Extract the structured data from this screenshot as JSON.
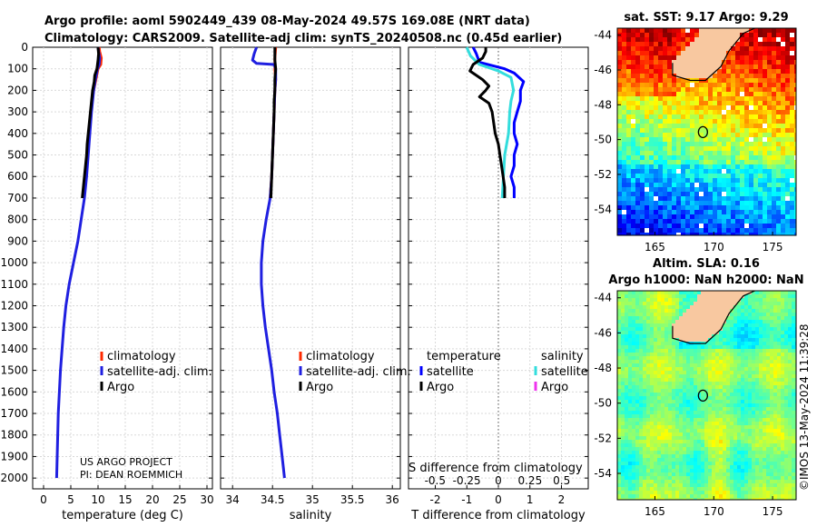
{
  "header": {
    "line1": "Argo profile: aoml 5902449_439 08-May-2024 49.57S 169.08E (NRT data)",
    "line2": "Climatology: CARS2009. Satellite-adj clim: synTS_20240508.nc (0.45d earlier)"
  },
  "colors": {
    "climatology": "#ff2a00",
    "satellite": "#1f1fe0",
    "argo": "#000000",
    "sat_temp": "#0000ff",
    "sat_sal": "#33dddd",
    "argo_sal": "#ee33ee"
  },
  "depth_ticks": [
    "0",
    "100",
    "200",
    "300",
    "400",
    "500",
    "600",
    "700",
    "800",
    "900",
    "1000",
    "1100",
    "1200",
    "1300",
    "1400",
    "1500",
    "1600",
    "1700",
    "1800",
    "1900",
    "2000"
  ],
  "chart_data": [
    {
      "type": "line",
      "name": "temperature",
      "xlabel": "temperature (deg C)",
      "ylabel": "depth",
      "xlim": [
        -2,
        31
      ],
      "ylim": [
        2050,
        0
      ],
      "xticks": [
        "0",
        "5",
        "10",
        "15",
        "20",
        "25",
        "30"
      ],
      "legend": [
        "climatology",
        "satellite-adj. clim.",
        "Argo"
      ],
      "credit1": "US ARGO PROJECT",
      "credit2": "PI: DEAN ROEMMICH",
      "series": [
        {
          "name": "climatology",
          "points": [
            [
              10.2,
              0
            ],
            [
              10.3,
              20
            ],
            [
              10.6,
              50
            ],
            [
              10.5,
              80
            ],
            [
              10.0,
              100
            ],
            [
              9.6,
              150
            ],
            [
              9.2,
              200
            ],
            [
              8.9,
              250
            ],
            [
              8.7,
              300
            ],
            [
              8.4,
              400
            ],
            [
              8.1,
              500
            ],
            [
              7.8,
              600
            ],
            [
              7.4,
              700
            ]
          ]
        },
        {
          "name": "satellite-adj. clim.",
          "points": [
            [
              10.0,
              0
            ],
            [
              10.1,
              20
            ],
            [
              10.3,
              50
            ],
            [
              10.2,
              80
            ],
            [
              9.9,
              100
            ],
            [
              9.5,
              150
            ],
            [
              9.2,
              200
            ],
            [
              9.0,
              250
            ],
            [
              8.8,
              300
            ],
            [
              8.5,
              400
            ],
            [
              8.2,
              500
            ],
            [
              7.9,
              600
            ],
            [
              7.5,
              700
            ],
            [
              6.9,
              800
            ],
            [
              6.3,
              900
            ],
            [
              5.5,
              1000
            ],
            [
              4.7,
              1100
            ],
            [
              4.1,
              1200
            ],
            [
              3.7,
              1300
            ],
            [
              3.4,
              1400
            ],
            [
              3.1,
              1500
            ],
            [
              2.9,
              1600
            ],
            [
              2.7,
              1700
            ],
            [
              2.6,
              1800
            ],
            [
              2.5,
              1900
            ],
            [
              2.4,
              2000
            ]
          ]
        },
        {
          "name": "Argo",
          "points": [
            [
              10.0,
              0
            ],
            [
              10.1,
              30
            ],
            [
              10.0,
              60
            ],
            [
              9.8,
              100
            ],
            [
              9.4,
              130
            ],
            [
              9.3,
              160
            ],
            [
              9.0,
              200
            ],
            [
              8.8,
              250
            ],
            [
              8.6,
              300
            ],
            [
              8.4,
              350
            ],
            [
              8.2,
              400
            ],
            [
              8.0,
              450
            ],
            [
              7.9,
              500
            ],
            [
              7.7,
              550
            ],
            [
              7.5,
              600
            ],
            [
              7.3,
              650
            ],
            [
              7.1,
              700
            ]
          ]
        }
      ]
    },
    {
      "type": "line",
      "name": "salinity",
      "xlabel": "salinity",
      "ylabel": "depth",
      "xlim": [
        33.85,
        36.1
      ],
      "ylim": [
        2050,
        0
      ],
      "xticks": [
        "34",
        "34.5",
        "35",
        "35.5",
        "36"
      ],
      "legend": [
        "climatology",
        "satellite-adj. clim.",
        "Argo"
      ],
      "series": [
        {
          "name": "climatology",
          "points": [
            [
              34.54,
              0
            ],
            [
              34.53,
              50
            ],
            [
              34.53,
              100
            ],
            [
              34.54,
              150
            ],
            [
              34.53,
              200
            ],
            [
              34.52,
              300
            ],
            [
              34.51,
              400
            ],
            [
              34.5,
              500
            ],
            [
              34.49,
              600
            ],
            [
              34.47,
              700
            ]
          ]
        },
        {
          "name": "satellite-adj. clim.",
          "points": [
            [
              34.3,
              0
            ],
            [
              34.27,
              30
            ],
            [
              34.25,
              60
            ],
            [
              34.3,
              75
            ],
            [
              34.52,
              80
            ],
            [
              34.54,
              100
            ],
            [
              34.54,
              150
            ],
            [
              34.53,
              200
            ],
            [
              34.52,
              300
            ],
            [
              34.51,
              400
            ],
            [
              34.5,
              500
            ],
            [
              34.49,
              600
            ],
            [
              34.47,
              700
            ],
            [
              34.42,
              800
            ],
            [
              34.38,
              900
            ],
            [
              34.36,
              1000
            ],
            [
              34.36,
              1100
            ],
            [
              34.38,
              1200
            ],
            [
              34.41,
              1300
            ],
            [
              34.45,
              1400
            ],
            [
              34.49,
              1500
            ],
            [
              34.52,
              1600
            ],
            [
              34.56,
              1700
            ],
            [
              34.59,
              1800
            ],
            [
              34.62,
              1900
            ],
            [
              34.65,
              2000
            ]
          ]
        },
        {
          "name": "Argo",
          "points": [
            [
              34.53,
              0
            ],
            [
              34.53,
              60
            ],
            [
              34.54,
              100
            ],
            [
              34.53,
              150
            ],
            [
              34.53,
              200
            ],
            [
              34.52,
              250
            ],
            [
              34.52,
              300
            ],
            [
              34.51,
              400
            ],
            [
              34.5,
              500
            ],
            [
              34.49,
              600
            ],
            [
              34.48,
              700
            ]
          ]
        }
      ]
    },
    {
      "type": "line",
      "name": "difference",
      "xlabel": "T difference from climatology",
      "xlabel2": "S difference from climatology",
      "xlim": [
        -2.85,
        2.85
      ],
      "ylim": [
        2050,
        0
      ],
      "xticks": [
        "-2",
        "-1",
        "0",
        "1",
        "2"
      ],
      "xticks2": [
        "-0.5",
        "-0.25",
        "0",
        "0.25",
        "0.5"
      ],
      "legend_temp_title": "temperature",
      "legend_sal_title": "salinity",
      "legend_sat": "satellite",
      "legend_argo": "Argo",
      "series": [
        {
          "name": "satellite temperature",
          "points": [
            [
              -0.8,
              0
            ],
            [
              -0.7,
              30
            ],
            [
              -0.6,
              70
            ],
            [
              0.2,
              100
            ],
            [
              0.5,
              120
            ],
            [
              0.8,
              160
            ],
            [
              0.7,
              200
            ],
            [
              0.7,
              250
            ],
            [
              0.6,
              300
            ],
            [
              0.5,
              350
            ],
            [
              0.5,
              400
            ],
            [
              0.6,
              450
            ],
            [
              0.5,
              500
            ],
            [
              0.5,
              550
            ],
            [
              0.4,
              600
            ],
            [
              0.5,
              650
            ],
            [
              0.5,
              700
            ]
          ]
        },
        {
          "name": "Argo temperature",
          "points": [
            [
              -0.4,
              0
            ],
            [
              -0.4,
              20
            ],
            [
              -0.5,
              50
            ],
            [
              -0.8,
              80
            ],
            [
              -0.9,
              110
            ],
            [
              -0.5,
              150
            ],
            [
              -0.3,
              180
            ],
            [
              -0.4,
              200
            ],
            [
              -0.6,
              230
            ],
            [
              -0.3,
              260
            ],
            [
              -0.2,
              300
            ],
            [
              -0.15,
              350
            ],
            [
              -0.1,
              400
            ],
            [
              0.0,
              450
            ],
            [
              0.05,
              500
            ],
            [
              0.1,
              550
            ],
            [
              0.15,
              600
            ],
            [
              0.2,
              650
            ],
            [
              0.2,
              700
            ]
          ]
        },
        {
          "name": "satellite salinity",
          "points": [
            [
              -0.25,
              0
            ],
            [
              -0.22,
              40
            ],
            [
              -0.15,
              80
            ],
            [
              0.0,
              110
            ],
            [
              0.1,
              140
            ],
            [
              0.12,
              200
            ],
            [
              0.1,
              250
            ],
            [
              0.09,
              300
            ],
            [
              0.08,
              400
            ],
            [
              0.05,
              500
            ],
            [
              0.04,
              600
            ],
            [
              0.03,
              700
            ]
          ]
        }
      ]
    },
    {
      "type": "heatmap",
      "name": "sat SST map",
      "title": "sat. SST: 9.17 Argo: 9.29",
      "xlim": [
        161.8,
        177.0
      ],
      "ylim": [
        -55.5,
        -43.6
      ],
      "xticks": [
        "165",
        "170",
        "175"
      ],
      "yticks": [
        "-44",
        "-46",
        "-48",
        "-50",
        "-52",
        "-54"
      ],
      "argo_position": [
        169.08,
        -49.57
      ]
    },
    {
      "type": "heatmap",
      "name": "altimetry SLA map",
      "title": "Altim. SLA: 0.16",
      "title2": "Argo h1000: NaN h2000: NaN",
      "xlim": [
        161.8,
        177.0
      ],
      "ylim": [
        -55.5,
        -43.6
      ],
      "xticks": [
        "165",
        "170",
        "175"
      ],
      "yticks": [
        "-44",
        "-46",
        "-48",
        "-50",
        "-52",
        "-54"
      ],
      "argo_position": [
        169.08,
        -49.57
      ]
    }
  ],
  "credit_vertical": "©IMOS 13-May-2024 11:39:28"
}
